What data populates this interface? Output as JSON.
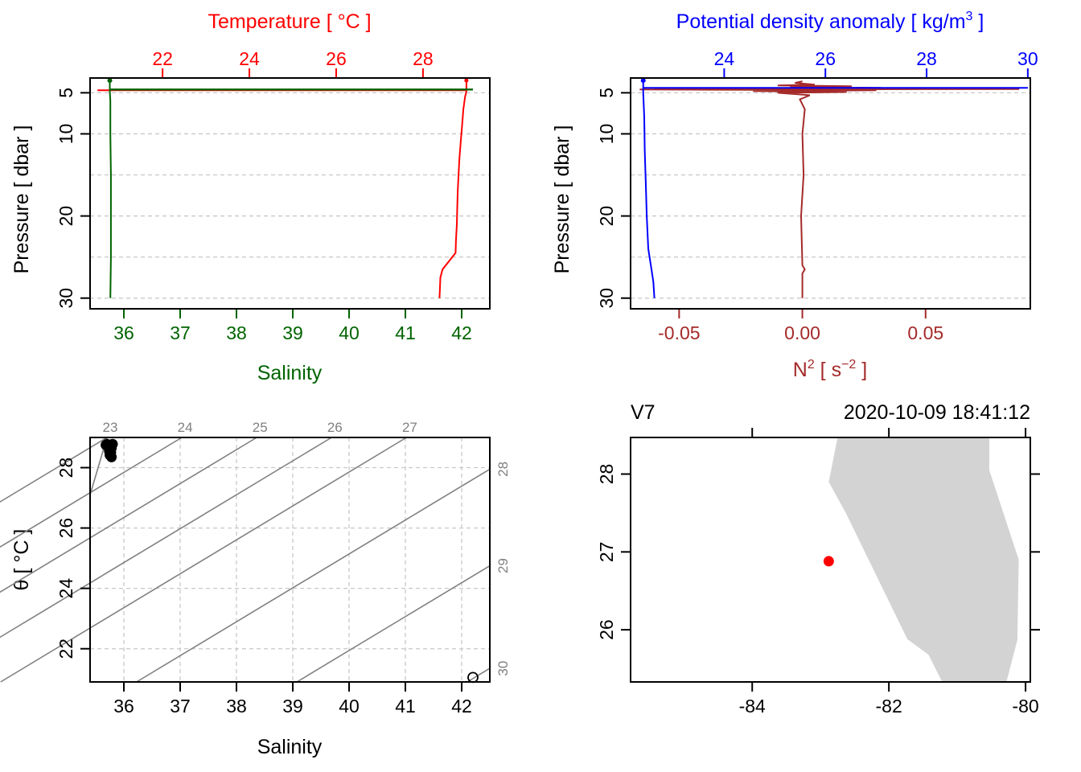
{
  "colors": {
    "temperature": "#ff0000",
    "salinity": "#006400",
    "density": "#0000ff",
    "n2": "#a52a2a",
    "land": "#d3d3d3",
    "isopycnal": "#808080",
    "station": "#ff0000"
  },
  "chart_data": [
    {
      "type": "line",
      "id": "profile_ts",
      "title": "Temperature [ °C ]",
      "xlabel": "Salinity",
      "ylabel": "Pressure [ dbar ]",
      "top_axis": {
        "label": "Temperature [ °C ]",
        "ticks": [
          22,
          24,
          26,
          28
        ],
        "range": [
          20.33,
          29.54
        ]
      },
      "bottom_axis": {
        "label": "Salinity",
        "ticks": [
          36,
          37,
          38,
          39,
          40,
          41,
          42
        ],
        "range": [
          35.4,
          42.5
        ]
      },
      "y_axis": {
        "ticks": [
          5,
          10,
          20,
          30
        ],
        "range": [
          31.3,
          3.2
        ],
        "reversed": true,
        "grid": [
          5,
          10,
          15,
          20,
          25,
          30
        ]
      },
      "series": [
        {
          "name": "Temperature",
          "axis": "top",
          "points": [
            [
              29.0,
              3.5
            ],
            [
              29.0,
              4.8
            ],
            [
              28.97,
              5.5
            ],
            [
              28.93,
              7
            ],
            [
              28.9,
              9
            ],
            [
              28.87,
              11
            ],
            [
              28.84,
              13
            ],
            [
              28.82,
              15
            ],
            [
              28.8,
              17
            ],
            [
              28.79,
              19
            ],
            [
              28.78,
              21
            ],
            [
              28.76,
              23
            ],
            [
              28.75,
              24.5
            ],
            [
              28.6,
              25.5
            ],
            [
              28.45,
              26.5
            ],
            [
              28.4,
              27.5
            ],
            [
              28.39,
              29
            ],
            [
              28.38,
              30.0
            ]
          ]
        },
        {
          "name": "Salinity",
          "axis": "bottom",
          "points": [
            [
              35.75,
              3.5
            ],
            [
              35.75,
              4.8
            ],
            [
              35.76,
              6
            ],
            [
              35.76,
              10
            ],
            [
              35.77,
              15
            ],
            [
              35.77,
              20
            ],
            [
              35.77,
              25
            ],
            [
              35.76,
              30.0
            ]
          ]
        },
        {
          "name": "Temperature surface spike",
          "axis": "top",
          "points": [
            [
              20.5,
              4.7
            ],
            [
              29.0,
              4.7
            ]
          ]
        },
        {
          "name": "Salinity surface spike",
          "axis": "bottom",
          "points": [
            [
              35.75,
              4.6
            ],
            [
              42.2,
              4.6
            ]
          ]
        }
      ]
    },
    {
      "type": "line",
      "id": "profile_density_n2",
      "title": "Potential density anomaly [ kg/m³ ]",
      "xlabel": "N² [ s⁻² ]",
      "ylabel": "Pressure [ dbar ]",
      "top_axis": {
        "label": "Potential density anomaly [ kg/m",
        "label_sup": "3",
        "label_end": " ]",
        "ticks": [
          24,
          26,
          28,
          30
        ],
        "range": [
          22.15,
          30.05
        ]
      },
      "bottom_axis": {
        "label": "N",
        "label_sup": "2",
        "label_mid": " [ s",
        "label_sup2": "−2",
        "label_end": " ]",
        "ticks": [
          -0.05,
          0.0,
          0.05
        ],
        "tick_labels": [
          "-0.05",
          "0.00",
          "0.05"
        ],
        "range": [
          -0.0697,
          0.0925
        ]
      },
      "y_axis": {
        "ticks": [
          5,
          10,
          20,
          30
        ],
        "range": [
          31.3,
          3.2
        ],
        "reversed": true,
        "grid": [
          5,
          10,
          15,
          20,
          25,
          30
        ]
      },
      "series": [
        {
          "name": "Potential density anomaly",
          "axis": "top",
          "points": [
            [
              22.4,
              3.5
            ],
            [
              22.4,
              5
            ],
            [
              22.42,
              8
            ],
            [
              22.43,
              12
            ],
            [
              22.45,
              16
            ],
            [
              22.47,
              20
            ],
            [
              22.5,
              24
            ],
            [
              22.55,
              26
            ],
            [
              22.6,
              28
            ],
            [
              22.62,
              30.0
            ]
          ]
        },
        {
          "name": "Density surface spike",
          "axis": "top",
          "points": [
            [
              22.4,
              4.4
            ],
            [
              30.0,
              4.4
            ]
          ]
        },
        {
          "name": "N2",
          "axis": "bottom",
          "points": [
            [
              0.0,
              3.6
            ],
            [
              -0.003,
              3.8
            ],
            [
              0.005,
              4.0
            ],
            [
              -0.01,
              4.1
            ],
            [
              0.02,
              4.2
            ],
            [
              -0.005,
              4.3
            ],
            [
              0.032,
              4.4
            ],
            [
              -0.06,
              4.5
            ],
            [
              0.088,
              4.55
            ],
            [
              -0.066,
              4.6
            ],
            [
              0.03,
              4.7
            ],
            [
              -0.02,
              4.8
            ],
            [
              0.018,
              4.9
            ],
            [
              -0.01,
              5.0
            ],
            [
              0.003,
              5.3
            ],
            [
              -0.001,
              5.8
            ],
            [
              0.001,
              7
            ],
            [
              0.0,
              10
            ],
            [
              0.0005,
              15
            ],
            [
              -0.0005,
              20
            ],
            [
              0.0,
              26
            ],
            [
              0.001,
              26.5
            ],
            [
              0.0,
              27
            ],
            [
              0.0,
              30.0
            ]
          ]
        }
      ]
    },
    {
      "type": "scatter",
      "id": "ts_diagram",
      "xlabel": "Salinity",
      "ylabel": "θ [ °C ]",
      "x_ticks": [
        36,
        37,
        38,
        39,
        40,
        41,
        42
      ],
      "y_ticks": [
        22,
        24,
        26,
        28
      ],
      "xlim": [
        35.4,
        42.5
      ],
      "ylim": [
        20.9,
        29.0
      ],
      "grid": true,
      "isopycnals_top": [
        23,
        24,
        25,
        26,
        27
      ],
      "isopycnals_right": [
        28,
        29,
        30
      ],
      "points": [
        [
          35.68,
          28.75
        ],
        [
          35.72,
          28.72
        ],
        [
          35.75,
          28.7
        ],
        [
          35.78,
          28.65
        ],
        [
          35.74,
          28.55
        ],
        [
          35.77,
          28.5
        ],
        [
          35.75,
          28.42
        ],
        [
          35.78,
          28.35
        ],
        [
          35.7,
          28.78
        ],
        [
          35.8,
          28.78
        ]
      ],
      "outlier": [
        42.2,
        21.05
      ]
    },
    {
      "type": "map",
      "id": "station_map",
      "x_ticks": [
        -84,
        -82,
        -80
      ],
      "y_ticks": [
        26,
        27,
        28
      ],
      "xlim": [
        -85.78,
        -79.93
      ],
      "ylim": [
        25.33,
        28.47
      ],
      "station_label": "V7",
      "time_label": "2020-10-09 18:41:12",
      "station": [
        -82.88,
        26.88
      ],
      "land": [
        [
          -82.75,
          28.47
        ],
        [
          -80.53,
          28.47
        ],
        [
          -80.53,
          28.05
        ],
        [
          -80.1,
          26.9
        ],
        [
          -80.12,
          25.87
        ],
        [
          -80.28,
          25.33
        ],
        [
          -81.22,
          25.33
        ],
        [
          -81.42,
          25.68
        ],
        [
          -81.73,
          25.88
        ],
        [
          -82.63,
          27.5
        ],
        [
          -82.88,
          27.9
        ]
      ]
    }
  ]
}
